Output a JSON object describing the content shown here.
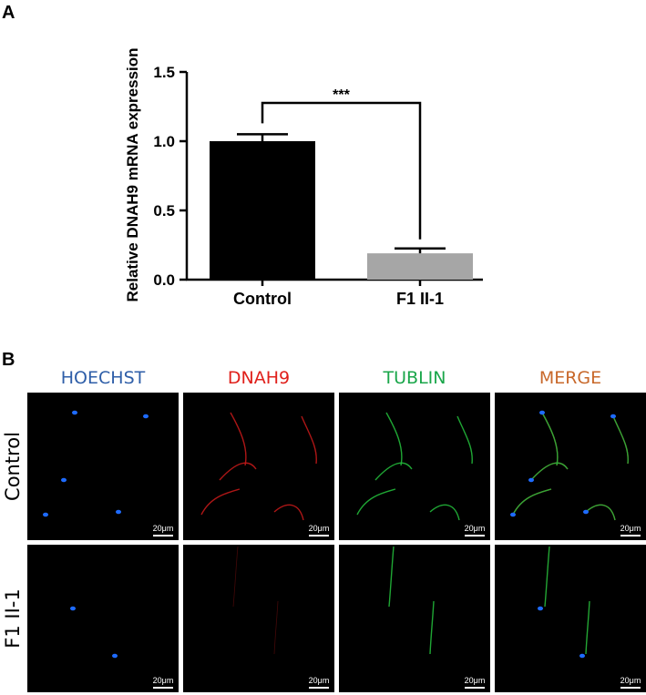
{
  "panel_a": {
    "letter": "A"
  },
  "panel_b": {
    "letter": "B",
    "columns": [
      {
        "label": "HOECHST",
        "color": "#2e5ea8"
      },
      {
        "label": "DNAH9",
        "color": "#e0201b"
      },
      {
        "label": "TUBLIN",
        "color": "#1aa64a"
      },
      {
        "label": "MERGE",
        "color": "#c8682a"
      }
    ],
    "rows": [
      "Control",
      "F1 II-1"
    ],
    "scale_bar_label": "20μm",
    "stain_colors": {
      "nucleus": "#1e6bff",
      "dnah9": "#c01818",
      "tubulin": "#22b83a"
    }
  },
  "chart_data": {
    "type": "bar",
    "categories": [
      "Control",
      "F1 II-1"
    ],
    "values": [
      1.0,
      0.19
    ],
    "error": [
      0.05,
      0.035
    ],
    "bar_colors": [
      "#000000",
      "#a6a6a6"
    ],
    "ylabel": "Relative DNAH9 mRNA expression",
    "xlabel": "",
    "ylim": [
      0,
      1.5
    ],
    "yticks": [
      "0.0",
      "0.5",
      "1.0",
      "1.5"
    ],
    "significance": "***",
    "grid": false
  }
}
